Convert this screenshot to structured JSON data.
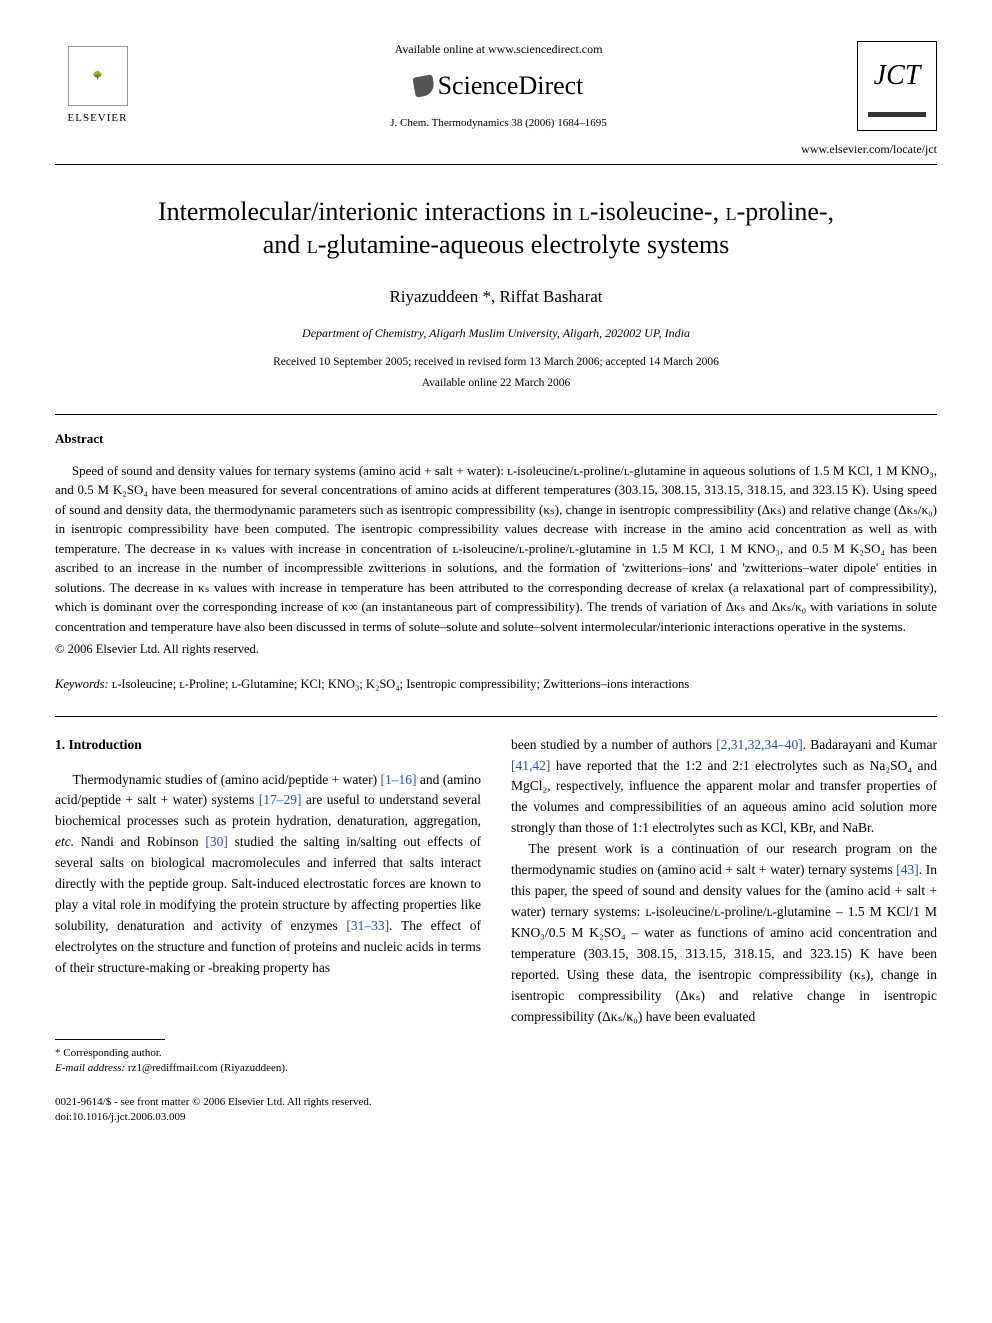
{
  "header": {
    "available_text": "Available online at www.sciencedirect.com",
    "sciencedirect_label": "ScienceDirect",
    "elsevier_label": "ELSEVIER",
    "journal_reference": "J. Chem. Thermodynamics 38 (2006) 1684–1695",
    "jct_label": "JCT",
    "locate_url": "www.elsevier.com/locate/jct"
  },
  "title": {
    "line1_pre": "Intermolecular/interionic interactions in ",
    "iso": "l",
    "line1_mid1": "-isoleucine-, ",
    "line1_mid2": "-proline-,",
    "line2_pre": "and ",
    "line2_post": "-glutamine-aqueous electrolyte systems"
  },
  "authors": "Riyazuddeen *, Riffat Basharat",
  "affiliation": "Department of Chemistry, Aligarh Muslim University, Aligarh, 202002 UP, India",
  "dates": {
    "received": "Received 10 September 2005; received in revised form 13 March 2006; accepted 14 March 2006",
    "available": "Available online 22 March 2006"
  },
  "abstract": {
    "heading": "Abstract",
    "body": "Speed of sound and density values for ternary systems (amino acid + salt + water): ʟ-isoleucine/ʟ-proline/ʟ-glutamine in aqueous solutions of 1.5 M KCl, 1 M KNO₃, and 0.5 M K₂SO₄ have been measured for several concentrations of amino acids at different temperatures (303.15, 308.15, 313.15, 318.15, and 323.15 K). Using speed of sound and density data, the thermodynamic parameters such as isentropic compressibility (κₛ), change in isentropic compressibility (Δκₛ) and relative change (Δκₛ/κ₀) in isentropic compressibility have been computed. The isentropic compressibility values decrease with increase in the amino acid concentration as well as with temperature. The decrease in κₛ values with increase in concentration of ʟ-isoleucine/ʟ-proline/ʟ-glutamine in 1.5 M KCl, 1 M KNO₃, and 0.5 M K₂SO₄ has been ascribed to an increase in the number of incompressible zwitterions in solutions, and the formation of 'zwitterions–ions' and 'zwitterions–water dipole' entities in solutions. The decrease in κₛ values with increase in temperature has been attributed to the corresponding decrease of κrelax (a relaxational part of compressibility), which is dominant over the corresponding increase of κ∞ (an instantaneous part of compressibility). The trends of variation of Δκₛ and Δκₛ/κ₀ with variations in solute concentration and temperature have also been discussed in terms of solute–solute and solute–solvent intermolecular/interionic interactions operative in the systems.",
    "copyright": "© 2006 Elsevier Ltd. All rights reserved."
  },
  "keywords": {
    "label": "Keywords:",
    "list": " ʟ-Isoleucine; ʟ-Proline; ʟ-Glutamine; KCl; KNO₃; K₂SO₄; Isentropic compressibility; Zwitterions–ions interactions"
  },
  "introduction": {
    "heading": "1. Introduction",
    "col1_p1_a": "Thermodynamic studies of (amino acid/peptide + water) ",
    "ref1": "[1–16]",
    "col1_p1_b": " and (amino acid/peptide + salt + water) systems ",
    "ref2": "[17–29]",
    "col1_p1_c": " are useful to understand several biochemical processes such as protein hydration, denaturation, aggregation, ",
    "etc": "etc.",
    "col1_p1_d": " Nandi and Robinson ",
    "ref3": "[30]",
    "col1_p1_e": " studied the salting in/salting out effects of several salts on biological macromolecules and inferred that salts interact directly with the peptide group. Salt-induced electrostatic forces are known to play a vital role in modifying the protein structure by affecting properties like solubility, denaturation and activity of enzymes ",
    "ref4": "[31–33]",
    "col1_p1_f": ". The effect of electrolytes on the structure and function of proteins and nucleic acids in terms of their structure-making or -breaking property has",
    "col2_p1_a": "been studied by a number of authors ",
    "ref5": "[2,31,32,34–40]",
    "col2_p1_b": ". Badarayani and Kumar ",
    "ref6": "[41,42]",
    "col2_p1_c": " have reported that the 1:2 and 2:1 electrolytes such as Na₂SO₄ and MgCl₂, respectively, influence the apparent molar and transfer properties of the volumes and compressibilities of an aqueous amino acid solution more strongly than those of 1:1 electrolytes such as KCl, KBr, and NaBr.",
    "col2_p2_a": "The present work is a continuation of our research program on the thermodynamic studies on (amino acid + salt + water) ternary systems ",
    "ref7": "[43]",
    "col2_p2_b": ". In this paper, the speed of sound and density values for the (amino acid + salt + water) ternary systems: ʟ-isoleucine/ʟ-proline/ʟ-glutamine – 1.5 M KCl/1 M KNO₃/0.5 M K₂SO₄ – water as functions of amino acid concentration and temperature (303.15, 308.15, 313.15, 318.15, and 323.15) K have been reported. Using these data, the isentropic compressibility (κₛ), change in isentropic compressibility (Δκₛ) and relative change in isentropic compressibility (Δκₛ/κ₀) have been evaluated"
  },
  "footnote": {
    "corresponding": "* Corresponding author.",
    "email_label": "E-mail address:",
    "email": " rz1@rediffmail.com (Riyazuddeen)."
  },
  "bottom": {
    "copyright_line": "0021-9614/$ - see front matter © 2006 Elsevier Ltd. All rights reserved.",
    "doi": "doi:10.1016/j.jct.2006.03.009"
  },
  "colors": {
    "link": "#2050c0",
    "text": "#000000",
    "background": "#ffffff"
  }
}
